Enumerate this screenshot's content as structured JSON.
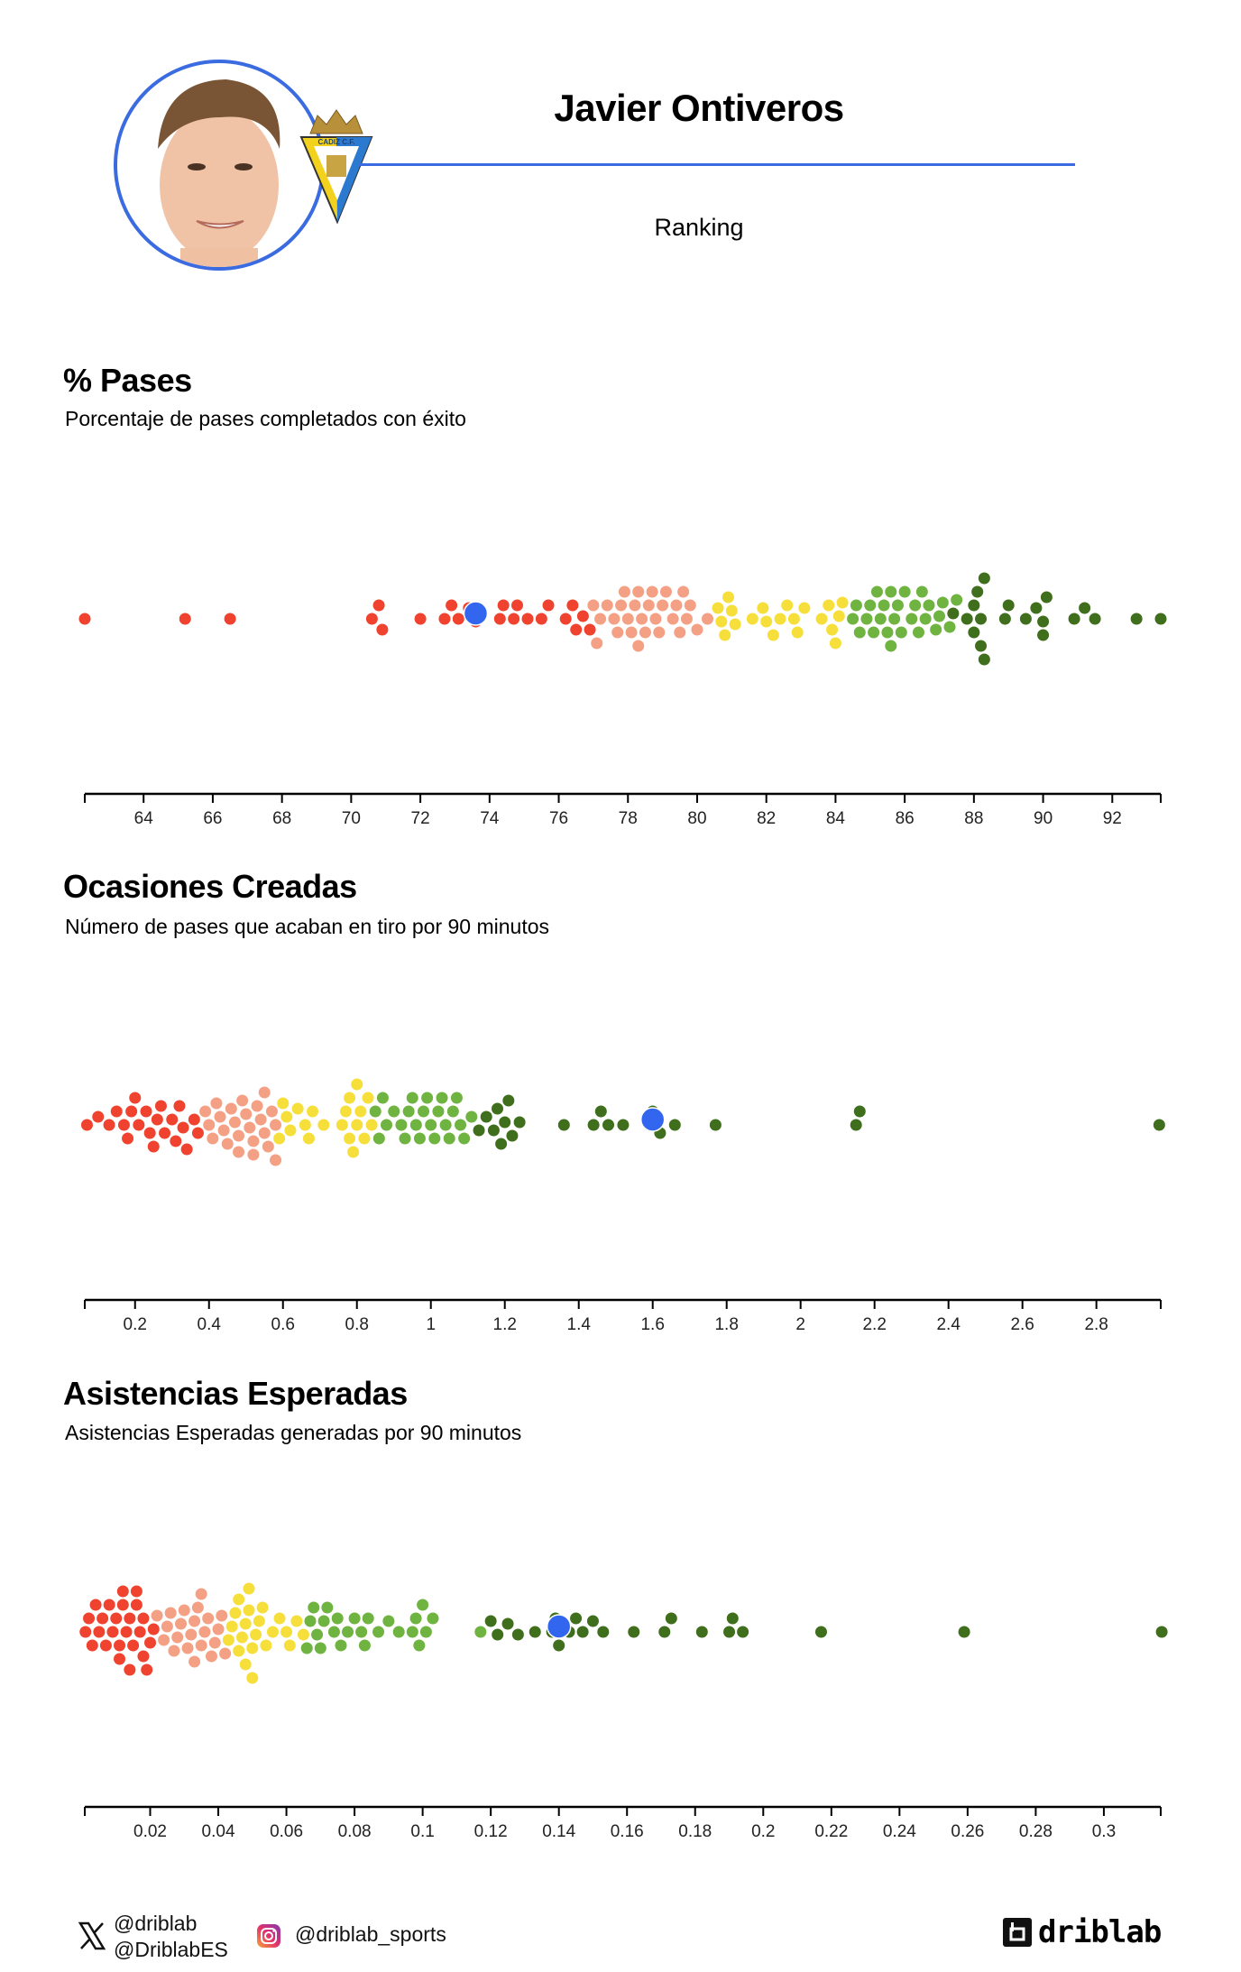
{
  "header": {
    "player_name": "Javier Ontiveros",
    "subtitle": "Ranking",
    "accent_color": "#3b6be0",
    "club_crest_text": "CADIZ C.F."
  },
  "colors": {
    "red": "#ef4330",
    "salmon": "#f4a084",
    "yellow": "#f6df3a",
    "light_green": "#6fb340",
    "dark_green": "#3f6e1c",
    "player": "#3366ee"
  },
  "chart_data": [
    {
      "type": "scatter",
      "style": "beeswarm",
      "title": "% Pases",
      "subtitle": "Porcentaje de pases completados con éxito",
      "xlim": [
        62.3,
        93.4
      ],
      "ticks": [
        64,
        66,
        68,
        70,
        72,
        74,
        76,
        78,
        80,
        82,
        84,
        86,
        88,
        90,
        92
      ],
      "tick_labels": [
        "64",
        "66",
        "68",
        "70",
        "72",
        "74",
        "76",
        "78",
        "80",
        "82",
        "84",
        "86",
        "88",
        "90",
        "92"
      ],
      "player_value": 73.6,
      "groups": [
        {
          "color": "red",
          "values": [
            62.3,
            65.2,
            66.5,
            70.6,
            70.8,
            70.9,
            72.0,
            72.7,
            72.9,
            73.1,
            73.4,
            73.6,
            74.3,
            74.4,
            74.7,
            74.8,
            75.1,
            75.5,
            75.7,
            76.2,
            76.4,
            76.5,
            76.7,
            76.9
          ]
        },
        {
          "color": "salmon",
          "values": [
            77.0,
            77.1,
            77.2,
            77.4,
            77.6,
            77.7,
            77.8,
            77.9,
            78.0,
            78.1,
            78.2,
            78.3,
            78.3,
            78.4,
            78.5,
            78.6,
            78.7,
            78.8,
            78.9,
            79.0,
            79.1,
            79.3,
            79.4,
            79.5,
            79.6,
            79.7,
            79.8,
            80.0,
            80.3
          ]
        },
        {
          "color": "yellow",
          "values": [
            80.6,
            80.7,
            80.8,
            80.9,
            81.0,
            81.1,
            81.6,
            81.9,
            82.0,
            82.2,
            82.4,
            82.6,
            82.8,
            82.9,
            83.1,
            83.6,
            83.8,
            83.9,
            84.0,
            84.1,
            84.2
          ]
        },
        {
          "color": "light_green",
          "values": [
            84.5,
            84.6,
            84.7,
            84.9,
            85.0,
            85.1,
            85.2,
            85.3,
            85.4,
            85.5,
            85.6,
            85.6,
            85.7,
            85.8,
            85.9,
            86.0,
            86.2,
            86.3,
            86.4,
            86.5,
            86.6,
            86.7,
            86.9,
            87.0,
            87.1,
            87.3,
            87.5
          ]
        },
        {
          "color": "dark_green",
          "values": [
            87.4,
            87.8,
            88.0,
            88.0,
            88.1,
            88.2,
            88.2,
            88.3,
            88.3,
            88.9,
            89.0,
            89.5,
            89.8,
            90.0,
            90.0,
            90.1,
            90.9,
            91.2,
            91.5,
            92.7,
            93.4
          ]
        }
      ]
    },
    {
      "type": "scatter",
      "style": "beeswarm",
      "title": "Ocasiones Creadas",
      "subtitle": "Número de pases que acaban en tiro por 90 minutos",
      "xlim": [
        0.064,
        2.974
      ],
      "ticks": [
        0.2,
        0.4,
        0.6,
        0.8,
        1,
        1.2,
        1.4,
        1.6,
        1.8,
        2,
        2.2,
        2.4,
        2.6,
        2.8
      ],
      "tick_labels": [
        "0.2",
        "0.4",
        "0.6",
        "0.8",
        "1",
        "1.2",
        "1.4",
        "1.6",
        "1.8",
        "2",
        "2.2",
        "2.4",
        "2.6",
        "2.8"
      ],
      "player_value": 1.6,
      "groups": [
        {
          "color": "red",
          "values": [
            0.07,
            0.1,
            0.13,
            0.15,
            0.17,
            0.18,
            0.19,
            0.2,
            0.21,
            0.23,
            0.24,
            0.25,
            0.26,
            0.27,
            0.28,
            0.3,
            0.31,
            0.32,
            0.33,
            0.34,
            0.36,
            0.37
          ]
        },
        {
          "color": "salmon",
          "values": [
            0.39,
            0.4,
            0.41,
            0.42,
            0.43,
            0.44,
            0.45,
            0.46,
            0.47,
            0.48,
            0.48,
            0.49,
            0.5,
            0.51,
            0.52,
            0.52,
            0.53,
            0.54,
            0.55,
            0.55,
            0.56,
            0.57,
            0.58,
            0.58
          ]
        },
        {
          "color": "yellow",
          "values": [
            0.59,
            0.6,
            0.61,
            0.62,
            0.64,
            0.66,
            0.67,
            0.68,
            0.71,
            0.76,
            0.77,
            0.78,
            0.78,
            0.79,
            0.8,
            0.8,
            0.81,
            0.82,
            0.83,
            0.84
          ]
        },
        {
          "color": "light_green",
          "values": [
            0.85,
            0.86,
            0.87,
            0.88,
            0.9,
            0.92,
            0.93,
            0.94,
            0.95,
            0.96,
            0.97,
            0.98,
            0.99,
            1.0,
            1.01,
            1.02,
            1.03,
            1.04,
            1.05,
            1.06,
            1.07,
            1.08,
            1.09,
            1.11
          ]
        },
        {
          "color": "dark_green",
          "values": [
            1.13,
            1.15,
            1.17,
            1.18,
            1.19,
            1.2,
            1.21,
            1.22,
            1.24,
            1.36,
            1.44,
            1.46,
            1.48,
            1.52,
            1.59,
            1.6,
            1.62,
            1.66,
            1.77,
            2.15,
            2.16,
            2.97
          ]
        }
      ]
    },
    {
      "type": "scatter",
      "style": "beeswarm",
      "title": "Asistencias Esperadas",
      "subtitle": "Asistencias Esperadas generadas por 90 minutos",
      "xlim": [
        0.0008,
        0.3167
      ],
      "ticks": [
        0.02,
        0.04,
        0.06,
        0.08,
        0.1,
        0.12,
        0.14,
        0.16,
        0.18,
        0.2,
        0.22,
        0.24,
        0.26,
        0.28,
        0.3
      ],
      "tick_labels": [
        "0.02",
        "0.04",
        "0.06",
        "0.08",
        "0.1",
        "0.12",
        "0.14",
        "0.16",
        "0.18",
        "0.2",
        "0.22",
        "0.24",
        "0.26",
        "0.28",
        "0.3"
      ],
      "player_value": 0.14,
      "groups": [
        {
          "color": "red",
          "values": [
            0.001,
            0.002,
            0.003,
            0.004,
            0.005,
            0.006,
            0.007,
            0.008,
            0.009,
            0.01,
            0.011,
            0.011,
            0.012,
            0.012,
            0.013,
            0.014,
            0.014,
            0.015,
            0.016,
            0.016,
            0.017,
            0.018,
            0.018,
            0.019,
            0.02,
            0.021
          ]
        },
        {
          "color": "salmon",
          "values": [
            0.022,
            0.024,
            0.025,
            0.026,
            0.027,
            0.028,
            0.029,
            0.03,
            0.031,
            0.032,
            0.033,
            0.033,
            0.034,
            0.035,
            0.035,
            0.036,
            0.037,
            0.038,
            0.039,
            0.04,
            0.041,
            0.042
          ]
        },
        {
          "color": "yellow",
          "values": [
            0.043,
            0.044,
            0.045,
            0.046,
            0.046,
            0.047,
            0.048,
            0.048,
            0.049,
            0.049,
            0.05,
            0.05,
            0.051,
            0.052,
            0.053,
            0.054,
            0.056,
            0.058,
            0.06,
            0.061,
            0.063,
            0.065
          ]
        },
        {
          "color": "light_green",
          "values": [
            0.066,
            0.067,
            0.068,
            0.069,
            0.07,
            0.071,
            0.072,
            0.074,
            0.075,
            0.076,
            0.078,
            0.08,
            0.082,
            0.083,
            0.084,
            0.087,
            0.09,
            0.093,
            0.097,
            0.098,
            0.099,
            0.1,
            0.101,
            0.103,
            0.117
          ]
        },
        {
          "color": "dark_green",
          "values": [
            0.12,
            0.122,
            0.125,
            0.128,
            0.133,
            0.138,
            0.139,
            0.14,
            0.143,
            0.145,
            0.147,
            0.15,
            0.153,
            0.162,
            0.171,
            0.173,
            0.182,
            0.19,
            0.191,
            0.194,
            0.217,
            0.259,
            0.317
          ]
        }
      ]
    }
  ],
  "footer": {
    "x_handle_1": "@driblab",
    "x_handle_2": "@DriblabES",
    "instagram_handle": "@driblab_sports",
    "logo_text": "driblab"
  }
}
